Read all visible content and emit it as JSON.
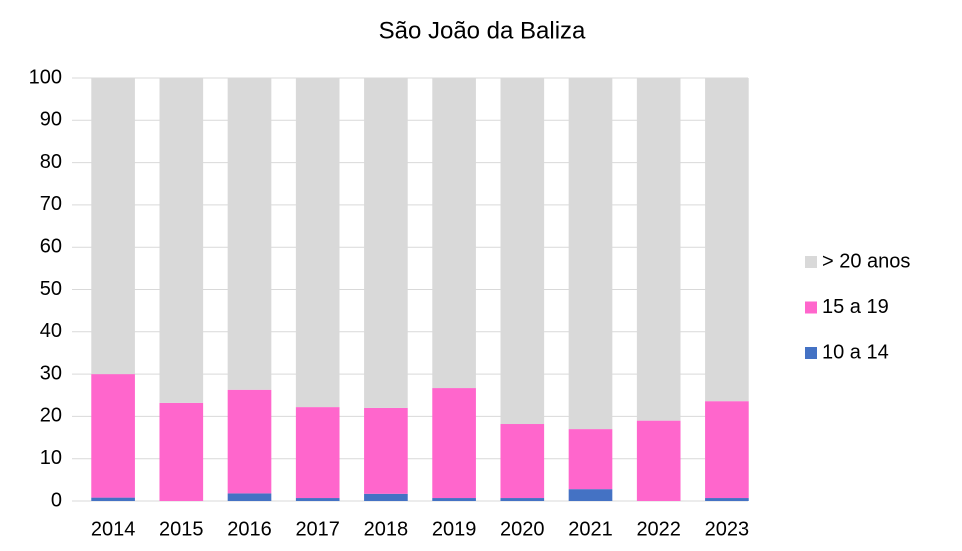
{
  "chart_data": {
    "type": "stacked_bar",
    "title": "São João da Baliza",
    "categories": [
      "2014",
      "2015",
      "2016",
      "2017",
      "2018",
      "2019",
      "2020",
      "2021",
      "2022",
      "2023"
    ],
    "series": [
      {
        "name": "10 a 14",
        "color": "#4472c4",
        "values": [
          0.8,
          0,
          1.8,
          0.7,
          1.7,
          0.7,
          0.7,
          2.8,
          0,
          0.7
        ]
      },
      {
        "name": "15 a 19",
        "color": "#ff66cc",
        "values": [
          29.2,
          23.2,
          24.5,
          21.5,
          20.3,
          26,
          17.5,
          14.2,
          19,
          22.9
        ]
      },
      {
        "name": "> 20 anos",
        "color": "#d9d9d9",
        "values": [
          70,
          76.8,
          73.7,
          77.8,
          78,
          73.3,
          81.8,
          83,
          81,
          76.4
        ]
      }
    ],
    "ylim": [
      0,
      100
    ],
    "yticks": [
      0,
      10,
      20,
      30,
      40,
      50,
      60,
      70,
      80,
      90,
      100
    ],
    "grid": true,
    "legend": "right"
  }
}
